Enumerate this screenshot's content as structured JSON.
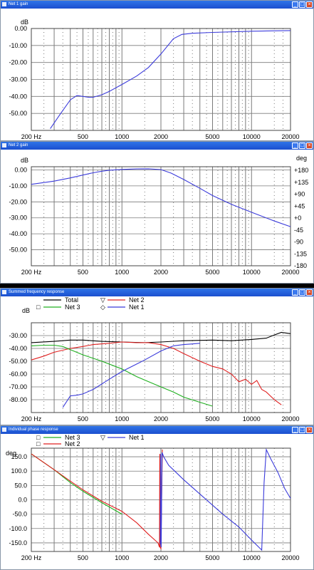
{
  "windows": [
    {
      "title": "Net 1 gain",
      "buttons": [
        "_",
        "□",
        "×"
      ]
    },
    {
      "title": "Net 2 gain",
      "buttons": [
        "_",
        "□",
        "×"
      ]
    },
    {
      "title": "Summed frequency response",
      "buttons": [
        "_",
        "□",
        "×"
      ]
    },
    {
      "title": "Individual phase response",
      "buttons": [
        "_",
        "□",
        "×"
      ]
    }
  ],
  "chart_data": [
    {
      "type": "line",
      "title": "Net 1 gain",
      "ylabel": "dB",
      "xscale": "log",
      "xlim": [
        200,
        20000
      ],
      "ylim": [
        -60,
        0
      ],
      "x_ticks": [
        "200 Hz",
        "500",
        "1000",
        "2000",
        "5000",
        "10000",
        "20000"
      ],
      "y_ticks": [
        "0.00",
        "-10.00",
        "-20.00",
        "-30.00",
        "-40.00",
        "-50.00"
      ],
      "series": [
        {
          "color": "#3b3bdb",
          "x": [
            280,
            330,
            400,
            450,
            500,
            550,
            600,
            700,
            800,
            1000,
            1300,
            1600,
            2000,
            2500,
            2900,
            3500,
            5000,
            10000,
            20000
          ],
          "y": [
            -59,
            -51,
            -42,
            -39.5,
            -40,
            -40.5,
            -40.5,
            -39,
            -37,
            -33,
            -28,
            -23,
            -15,
            -6,
            -3.5,
            -2.8,
            -2.3,
            -1.6,
            -1.2
          ]
        }
      ]
    },
    {
      "type": "line",
      "title": "Net 2 gain",
      "ylabel": "dB",
      "y2label": "deg",
      "xscale": "log",
      "xlim": [
        200,
        20000
      ],
      "ylim": [
        -60,
        2
      ],
      "x_ticks": [
        "200 Hz",
        "500",
        "1000",
        "2000",
        "5000",
        "10000",
        "20000"
      ],
      "y_ticks": [
        "0.00",
        "-10.00",
        "-20.00",
        "-30.00",
        "-40.00",
        "-50.00"
      ],
      "y2_ticks": [
        "+180",
        "+135",
        "+90",
        "+45",
        "+0",
        "-45",
        "-90",
        "-135",
        "-180"
      ],
      "series": [
        {
          "color": "#3b3bdb",
          "x": [
            200,
            300,
            400,
            500,
            600,
            700,
            800,
            1000,
            1300,
            1600,
            2000,
            2400,
            3000,
            4000,
            5000,
            7000,
            10000,
            15000,
            20000
          ],
          "y": [
            -9,
            -7,
            -5,
            -3.2,
            -1.8,
            -0.8,
            -0.2,
            0.3,
            0.6,
            0.7,
            0.2,
            -2,
            -6,
            -11.5,
            -16,
            -21.5,
            -26.5,
            -32,
            -35.5
          ]
        }
      ]
    },
    {
      "type": "line",
      "title": "Summed frequency response",
      "ylabel": "dB",
      "xscale": "log",
      "xlim": [
        200,
        20000
      ],
      "ylim": [
        -90,
        -20
      ],
      "x_ticks": [
        "200 Hz",
        "500",
        "1000",
        "2000",
        "5000",
        "10000",
        "20000"
      ],
      "y_ticks": [
        "-30.00",
        "-40.00",
        "-50.00",
        "-60.00",
        "-70.00",
        "-80.00"
      ],
      "legend": [
        {
          "label": "Total",
          "marker": "",
          "color": "#000000"
        },
        {
          "label": "Net 2",
          "marker": "▽",
          "color": "#e02020"
        },
        {
          "label": "Net 3",
          "marker": "□",
          "color": "#20b020"
        },
        {
          "label": "Net 1",
          "marker": "◇",
          "color": "#3b3bdb"
        }
      ],
      "series": [
        {
          "name": "Total",
          "color": "#000000",
          "x": [
            200,
            300,
            400,
            500,
            700,
            1000,
            1500,
            2000,
            3000,
            5000,
            7000,
            10000,
            13000,
            15000,
            17000,
            20000
          ],
          "y": [
            -35.5,
            -34.5,
            -33.5,
            -33.5,
            -34.5,
            -35,
            -35.5,
            -35,
            -34,
            -33.5,
            -34,
            -33,
            -32,
            -29.5,
            -27.5,
            -28.5
          ]
        },
        {
          "name": "Net 2",
          "color": "#e02020",
          "x": [
            200,
            250,
            300,
            400,
            500,
            600,
            800,
            1000,
            1300,
            1600,
            2000,
            2500,
            3000,
            4000,
            5000,
            6000,
            7000,
            8000,
            9000,
            10000,
            11000,
            12000,
            13000,
            15000,
            17000
          ],
          "y": [
            -49,
            -46,
            -43,
            -40,
            -38.5,
            -37,
            -36,
            -35,
            -35.5,
            -35.5,
            -37,
            -40,
            -44,
            -50,
            -54,
            -56,
            -60,
            -66,
            -64,
            -68,
            -65,
            -72,
            -74,
            -80,
            -84
          ]
        },
        {
          "name": "Net 3",
          "color": "#20b020",
          "x": [
            200,
            250,
            300,
            350,
            400,
            500,
            700,
            1000,
            1300,
            1700,
            2000,
            2500,
            3000,
            4000,
            5000
          ],
          "y": [
            -38,
            -37.5,
            -37.5,
            -38.5,
            -41,
            -45,
            -50,
            -56,
            -62,
            -67,
            -70,
            -74,
            -78,
            -82,
            -85
          ]
        },
        {
          "name": "Net 1",
          "color": "#3b3bdb",
          "x": [
            350,
            400,
            450,
            500,
            600,
            800,
            1000,
            1500,
            2000,
            2500,
            3000,
            3500,
            4000
          ],
          "y": [
            -86,
            -77,
            -76.5,
            -75.5,
            -72,
            -64,
            -58,
            -49,
            -42,
            -38,
            -37,
            -36.5,
            -36
          ]
        }
      ]
    },
    {
      "type": "line",
      "title": "Individual phase response",
      "ylabel": "deg",
      "xscale": "log",
      "xlim": [
        200,
        20000
      ],
      "ylim": [
        -180,
        180
      ],
      "x_ticks": [
        "200 Hz",
        "500",
        "1000",
        "2000",
        "5000",
        "10000",
        "20000"
      ],
      "y_ticks": [
        "150.0",
        "100.0",
        "50.0",
        "0.0",
        "-50.0",
        "-100.0",
        "-150.0"
      ],
      "legend": [
        {
          "label": "Net 3",
          "marker": "□",
          "color": "#20b020"
        },
        {
          "label": "Net 2",
          "marker": "□",
          "color": "#e02020"
        },
        {
          "label": "Net 1",
          "marker": "▽",
          "color": "#3b3bdb"
        }
      ],
      "series": [
        {
          "name": "Net 3",
          "color": "#20b020",
          "x": [
            200,
            300,
            400,
            500,
            700,
            1000
          ],
          "y": [
            160,
            105,
            60,
            30,
            -10,
            -50
          ]
        },
        {
          "name": "Net 2",
          "color": "#e02020",
          "x": [
            200,
            300,
            400,
            500,
            700,
            1000,
            1300,
            1600,
            1900,
            1950,
            1960,
            1970,
            2000,
            2050
          ],
          "y": [
            160,
            105,
            65,
            35,
            -5,
            -40,
            -80,
            -120,
            -150,
            -165,
            160,
            -165,
            -170,
            175
          ]
        },
        {
          "name": "Net 1",
          "color": "#3b3bdb",
          "x": [
            1980,
            1990,
            2000,
            2010,
            2040,
            2100,
            2300,
            3000,
            4000,
            6000,
            8000,
            10000,
            12000,
            12500,
            13000,
            14000,
            16000,
            18000,
            20000
          ],
          "y": [
            -155,
            160,
            -160,
            -165,
            165,
            150,
            120,
            70,
            20,
            -50,
            -95,
            -140,
            -175,
            60,
            175,
            145,
            95,
            40,
            5
          ]
        }
      ]
    }
  ]
}
